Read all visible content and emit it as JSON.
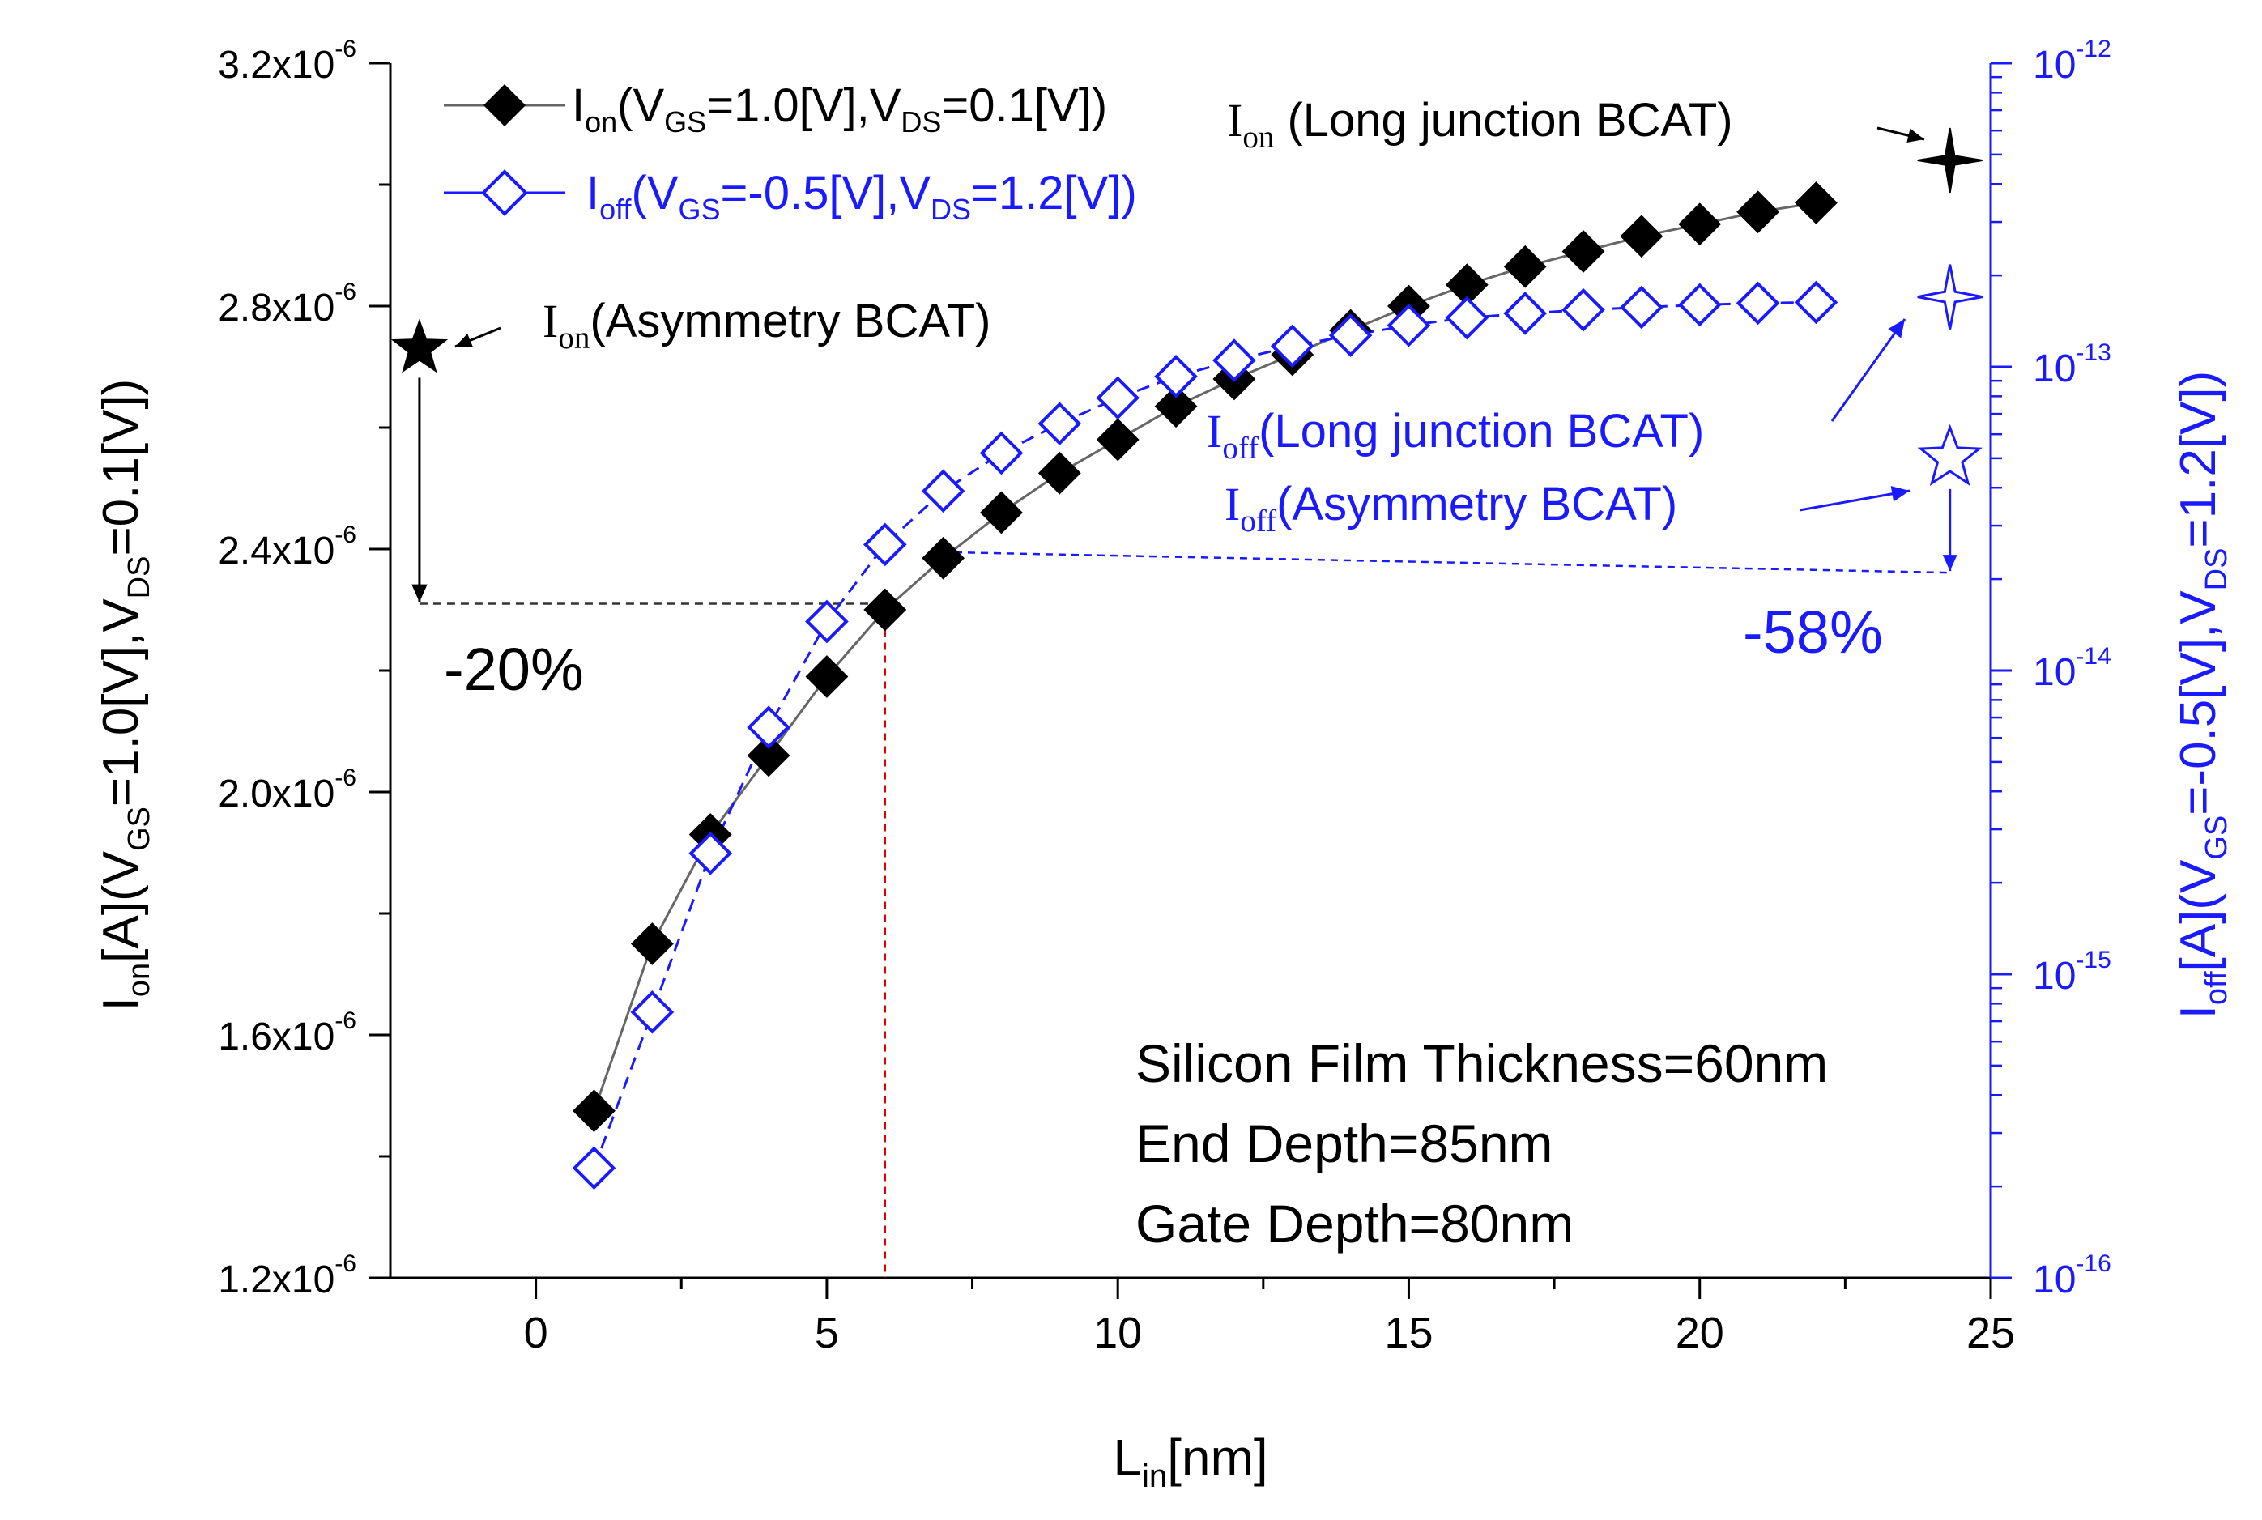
{
  "chart_data": {
    "type": "scatter",
    "xlabel": {
      "main": "L",
      "sub": "in",
      "tail": "[nm]"
    },
    "x_range": [
      -2.5,
      25
    ],
    "x_ticks": [
      0,
      5,
      10,
      15,
      20,
      25
    ],
    "x_tick_labels": [
      "0",
      "5",
      "10",
      "15",
      "20",
      "25"
    ],
    "y_left": {
      "range": [
        1.2e-06,
        3.2e-06
      ],
      "ticks": [
        1.2e-06,
        1.6e-06,
        2e-06,
        2.4e-06,
        2.8e-06,
        3.2e-06
      ],
      "tick_labels": [
        {
          "mant": "1.2x10",
          "exp": "-6"
        },
        {
          "mant": "1.6x10",
          "exp": "-6"
        },
        {
          "mant": "2.0x10",
          "exp": "-6"
        },
        {
          "mant": "2.4x10",
          "exp": "-6"
        },
        {
          "mant": "2.8x10",
          "exp": "-6"
        },
        {
          "mant": "3.2x10",
          "exp": "-6"
        }
      ],
      "label": [
        {
          "t": "I"
        },
        {
          "t": "on",
          "sub": true
        },
        {
          "t": "[A](V"
        },
        {
          "t": "GS",
          "sub": true
        },
        {
          "t": "=1.0[V],V"
        },
        {
          "t": "DS",
          "sub": true
        },
        {
          "t": "=0.1[V])"
        }
      ],
      "color": "#111111"
    },
    "y_right": {
      "scale": "log",
      "range": [
        1e-16,
        1e-12
      ],
      "ticks": [
        1e-16,
        1e-15,
        1e-14,
        1e-13,
        1e-12
      ],
      "tick_labels": [
        {
          "mant": "10",
          "exp": "-16"
        },
        {
          "mant": "10",
          "exp": "-15"
        },
        {
          "mant": "10",
          "exp": "-14"
        },
        {
          "mant": "10",
          "exp": "-13"
        },
        {
          "mant": "10",
          "exp": "-12"
        }
      ],
      "label": [
        {
          "t": "I"
        },
        {
          "t": "off",
          "sub": true
        },
        {
          "t": "[A](V"
        },
        {
          "t": "GS",
          "sub": true
        },
        {
          "t": "=-0.5[V],V"
        },
        {
          "t": "DS",
          "sub": true
        },
        {
          "t": "=1.2[V])"
        }
      ],
      "color": "#1a1aff"
    },
    "series": [
      {
        "name": "Ion",
        "axis": "left",
        "marker": "diamond-filled",
        "color": "#000000",
        "line_color": "#666666",
        "legend": [
          {
            "t": "I"
          },
          {
            "t": "on",
            "sub": true
          },
          {
            "t": "(V"
          },
          {
            "t": "GS",
            "sub": true
          },
          {
            "t": "=1.0[V],V"
          },
          {
            "t": "DS",
            "sub": true
          },
          {
            "t": "=0.1[V])"
          }
        ],
        "x": [
          1,
          2,
          3,
          4,
          5,
          6,
          7,
          8,
          9,
          10,
          11,
          12,
          13,
          14,
          15,
          16,
          17,
          18,
          19,
          20,
          21,
          22
        ],
        "y": [
          1.475e-06,
          1.75e-06,
          1.93e-06,
          2.06e-06,
          2.19e-06,
          2.3e-06,
          2.385e-06,
          2.46e-06,
          2.525e-06,
          2.58e-06,
          2.635e-06,
          2.68e-06,
          2.72e-06,
          2.76e-06,
          2.8e-06,
          2.835e-06,
          2.865e-06,
          2.89e-06,
          2.915e-06,
          2.935e-06,
          2.955e-06,
          2.97e-06
        ]
      },
      {
        "name": "Ioff",
        "axis": "right",
        "marker": "diamond-open",
        "color": "#1a1aff",
        "line_color": "#1a1aff",
        "legend": [
          {
            "t": "I"
          },
          {
            "t": "off",
            "sub": true
          },
          {
            "t": "(V"
          },
          {
            "t": "GS",
            "sub": true
          },
          {
            "t": "=-0.5[V],V"
          },
          {
            "t": "DS",
            "sub": true
          },
          {
            "t": "=1.2[V])"
          }
        ],
        "x": [
          1,
          2,
          3,
          4,
          5,
          6,
          7,
          8,
          9,
          10,
          11,
          12,
          13,
          14,
          15,
          16,
          17,
          18,
          19,
          20,
          21,
          22
        ],
        "y": [
          2.3e-16,
          7.5e-16,
          2.5e-15,
          6.5e-15,
          1.45e-14,
          2.6e-14,
          3.9e-14,
          5.2e-14,
          6.5e-14,
          7.9e-14,
          9.3e-14,
          1.05e-13,
          1.17e-13,
          1.27e-13,
          1.37e-13,
          1.45e-13,
          1.5e-13,
          1.54e-13,
          1.57e-13,
          1.6e-13,
          1.62e-13,
          1.63e-13
        ]
      }
    ],
    "reference_points": [
      {
        "name": "Ion Asymmetry BCAT",
        "axis": "left",
        "x": -2,
        "y": 2.73e-06,
        "marker": "star-filled",
        "color": "#000000"
      },
      {
        "name": "Ion Long junction BCAT",
        "axis": "left",
        "x": 24.3,
        "y": 3.04e-06,
        "marker": "cross-star",
        "color": "#000000"
      },
      {
        "name": "Ioff Long junction BCAT",
        "axis": "right",
        "x": 24.3,
        "y": 1.7e-13,
        "marker": "cross-star-open",
        "color": "#1a1aff"
      },
      {
        "name": "Ioff Asymmetry BCAT",
        "axis": "right",
        "x": 24.3,
        "y": 5e-14,
        "marker": "star-open",
        "color": "#1a1aff"
      }
    ],
    "annotations": {
      "ion_long": {
        "main": "I",
        "sub": "on",
        "rest": " (Long junction BCAT)"
      },
      "ion_asym": {
        "main": "I",
        "sub": "on",
        "rest": "(Asymmetry BCAT)"
      },
      "ioff_long": {
        "main": "I",
        "sub": "off",
        "rest": "(Long junction BCAT)"
      },
      "ioff_asym": {
        "main": "I",
        "sub": "off",
        "rest": "(Asymmetry BCAT)"
      },
      "pct_ion": "-20%",
      "pct_ioff": "-58%",
      "conditions": [
        "Silicon Film Thickness=60nm",
        "End Depth=85nm",
        "Gate Depth=80nm"
      ]
    },
    "guide_lines": {
      "ion_level": 2.31e-06,
      "ioff_level": 2.1e-14,
      "x_at": 6
    },
    "colors": {
      "black": "#000000",
      "blue": "#1a1aff",
      "red": "#e00000",
      "grey": "#666666"
    }
  }
}
